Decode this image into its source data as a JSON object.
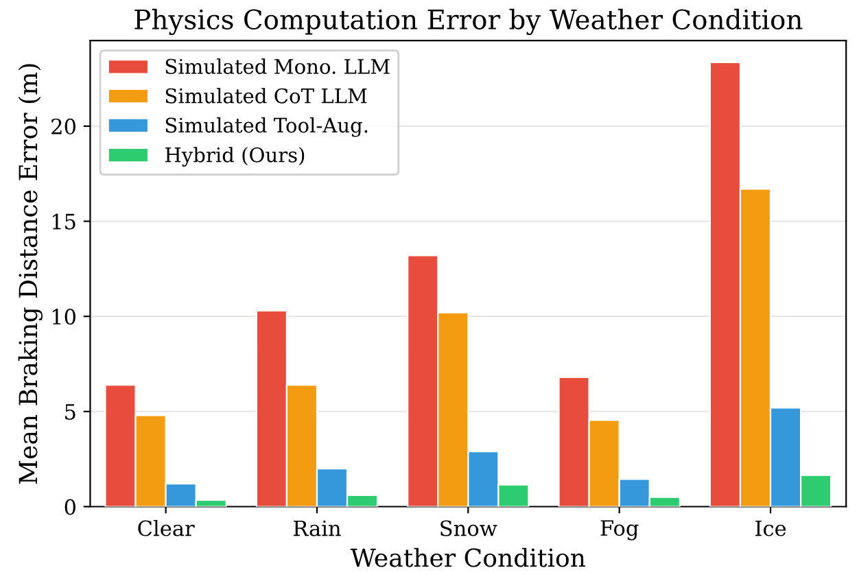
{
  "chart_data": {
    "type": "bar",
    "title": "Physics Computation Error by Weather Condition",
    "xlabel": "Weather Condition",
    "ylabel": "Mean Braking Distance Error (m)",
    "categories": [
      "Clear",
      "Rain",
      "Snow",
      "Fog",
      "Ice"
    ],
    "series": [
      {
        "name": "Simulated Mono. LLM",
        "color": "#e74c3c",
        "values": [
          6.4,
          10.3,
          13.2,
          6.8,
          23.35
        ]
      },
      {
        "name": "Simulated CoT LLM",
        "color": "#f39c12",
        "values": [
          4.8,
          6.4,
          10.2,
          4.55,
          16.7
        ]
      },
      {
        "name": "Simulated Tool-Aug.",
        "color": "#3498db",
        "values": [
          1.2,
          2.0,
          2.9,
          1.45,
          5.2
        ]
      },
      {
        "name": "Hybrid (Ours)",
        "color": "#2ecc71",
        "values": [
          0.35,
          0.6,
          1.15,
          0.5,
          1.65
        ]
      }
    ],
    "ylim": [
      0,
      24.5
    ],
    "yticks": [
      0,
      5,
      10,
      15,
      20
    ],
    "grid": "y",
    "legend": "top left"
  }
}
